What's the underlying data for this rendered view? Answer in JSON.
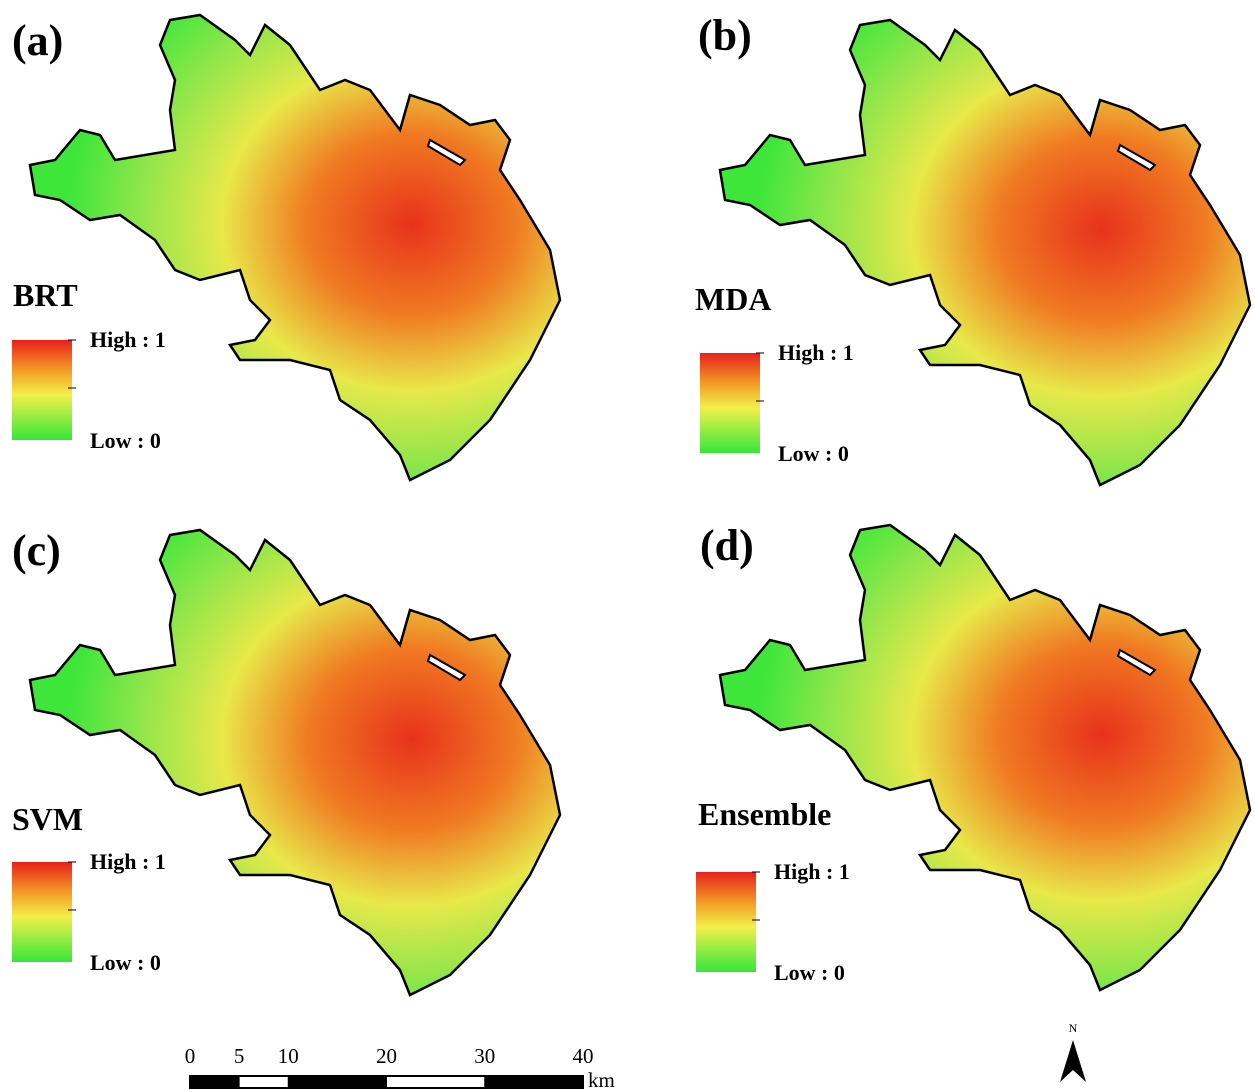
{
  "panels": [
    {
      "label": "(a)",
      "model": "BRT",
      "high": "High : 1",
      "low": "Low : 0"
    },
    {
      "label": "(b)",
      "model": "MDA",
      "high": "High : 1",
      "low": "Low : 0"
    },
    {
      "label": "(c)",
      "model": "SVM",
      "high": "High : 1",
      "low": "Low : 0"
    },
    {
      "label": "(d)",
      "model": "Ensemble",
      "high": "High : 1",
      "low": "Low : 0"
    }
  ],
  "scale_bar": {
    "ticks": [
      0,
      5,
      10,
      20,
      30,
      40
    ],
    "unit": "km"
  },
  "north_arrow": {
    "label": "N"
  }
}
